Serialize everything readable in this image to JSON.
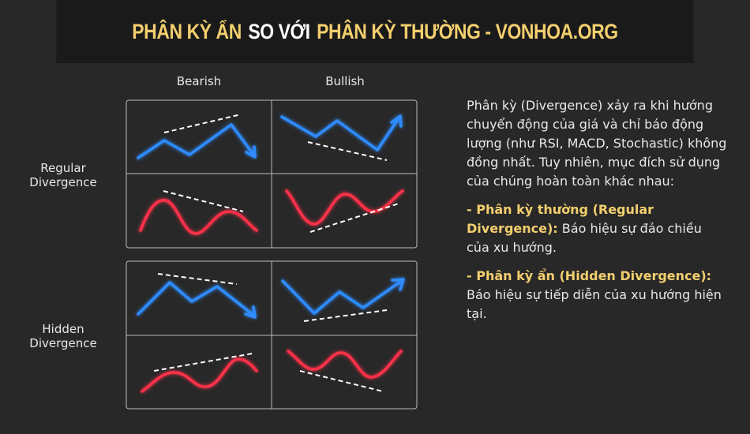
{
  "header": {
    "title_parts": [
      "PHÂN KỲ ẨN",
      "SO VỚI",
      "PHÂN KỲ THƯỜNG - VONHOA.ORG"
    ]
  },
  "grid": {
    "columns": [
      "Bearish",
      "Bullish"
    ],
    "rows": [
      "Regular Divergence",
      "Hidden Divergence"
    ]
  },
  "description": {
    "intro": "Phân kỳ (Divergence) xảy ra khi hướng chuyển động của giá và chỉ báo động lượng (như RSI, MACD, Stochastic) không đồng nhất. Tuy nhiên, mục đích sử dụng của chúng hoàn toàn khác nhau:",
    "items": [
      {
        "label": "- Phân kỳ thường (Regular Divergence):",
        "text": "Báo hiệu sự đảo chiều của xu hướng."
      },
      {
        "label": "- Phân kỳ ẩn (Hidden Divergence):",
        "text": "Báo hiệu sự tiếp diễn của xu hướng hiện tại."
      }
    ]
  }
}
